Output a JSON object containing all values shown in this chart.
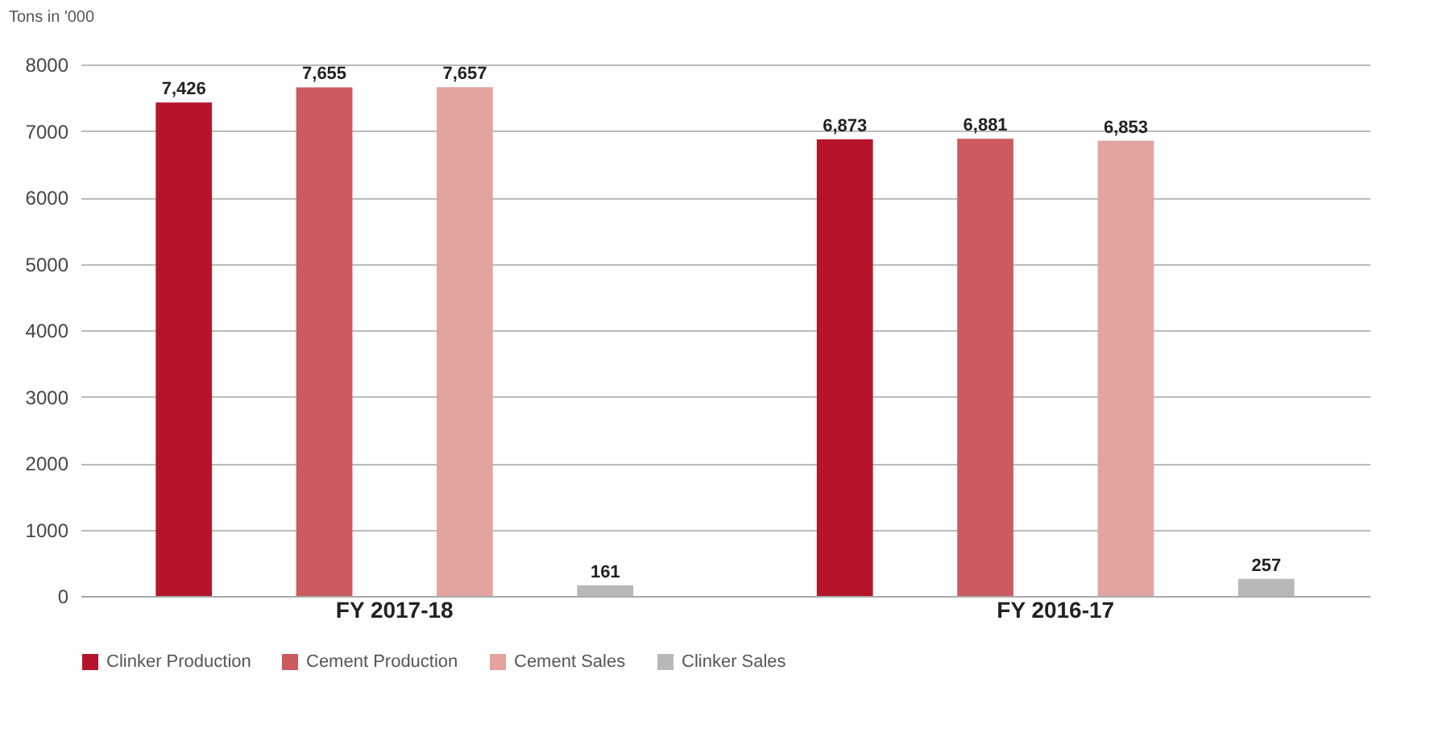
{
  "chart_data": {
    "type": "bar",
    "ylabel": "Tons in '000",
    "categories": [
      "FY 2017-18",
      "FY 2016-17"
    ],
    "series": [
      {
        "name": "Clinker Production",
        "color": "#b5152b",
        "values": [
          7426,
          6873
        ],
        "value_labels": [
          "7,426",
          "6,873"
        ]
      },
      {
        "name": "Cement Production",
        "color": "#cc5a5e",
        "values": [
          7655,
          6881
        ],
        "value_labels": [
          "7,655",
          "6,881"
        ]
      },
      {
        "name": "Cement Sales",
        "color": "#e3a3a1",
        "values": [
          7657,
          6853
        ],
        "value_labels": [
          "7,657",
          "6,853"
        ]
      },
      {
        "name": "Clinker Sales",
        "color": "#b8b8b8",
        "values": [
          161,
          257
        ],
        "value_labels": [
          "161",
          "257"
        ]
      }
    ],
    "ylim": [
      0,
      8000
    ],
    "yticks": [
      0,
      1000,
      2000,
      3000,
      4000,
      5000,
      6000,
      7000,
      8000
    ],
    "grid": "y",
    "legend": "bottom left"
  }
}
